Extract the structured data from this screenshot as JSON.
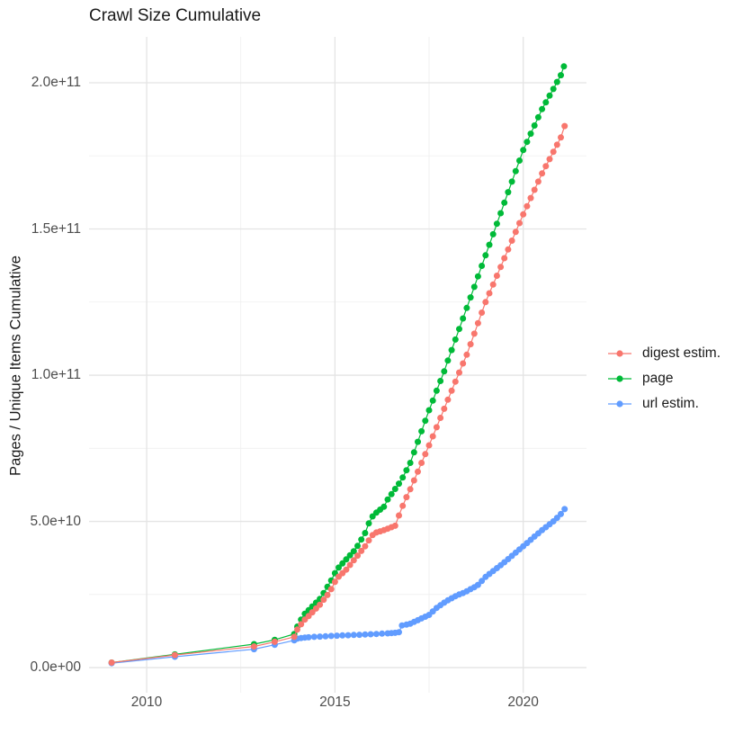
{
  "title": "Crawl Size Cumulative",
  "chart_data": {
    "type": "scatter",
    "title": "Crawl Size Cumulative",
    "xlabel": "",
    "ylabel": "Pages / Unique Items Cumulative",
    "value_unit": "items, stored as billions (1 = 1e9)",
    "xlim": [
      2008.47,
      2021.68
    ],
    "ylim_e9": [
      -8.6,
      215.7
    ],
    "grid": true,
    "legend_position": "right",
    "x_ticks": [
      {
        "label": "2010",
        "year": 2010
      },
      {
        "label": "2015",
        "year": 2015
      },
      {
        "label": "2020",
        "year": 2020
      }
    ],
    "x_minor": [
      2012.5,
      2017.5
    ],
    "y_ticks": [
      {
        "label": "0.0e+00",
        "value": 0
      },
      {
        "label": "5.0e+10",
        "value": 50
      },
      {
        "label": "1.0e+11",
        "value": 100
      },
      {
        "label": "1.5e+11",
        "value": 150
      },
      {
        "label": "2.0e+11",
        "value": 200
      }
    ],
    "y_minor": [
      25,
      75,
      125,
      175
    ],
    "draw_order": [
      1,
      2,
      0
    ],
    "series": [
      {
        "name": "digest estim.",
        "color": "#F8766D",
        "points": [
          [
            2009.07,
            1.7
          ],
          [
            2010.75,
            4.3
          ],
          [
            2012.85,
            7.2
          ],
          [
            2013.4,
            8.8
          ],
          [
            2013.92,
            10.5
          ],
          [
            2014.0,
            13
          ],
          [
            2014.1,
            14.8
          ],
          [
            2014.2,
            16.4
          ],
          [
            2014.3,
            17.6
          ],
          [
            2014.4,
            18.9
          ],
          [
            2014.5,
            20.2
          ],
          [
            2014.6,
            21.5
          ],
          [
            2014.7,
            23.2
          ],
          [
            2014.8,
            24.8
          ],
          [
            2014.9,
            26.8
          ],
          [
            2015.0,
            29.3
          ],
          [
            2015.1,
            31.1
          ],
          [
            2015.2,
            32.3
          ],
          [
            2015.3,
            33.5
          ],
          [
            2015.4,
            35.1
          ],
          [
            2015.5,
            36.7
          ],
          [
            2015.6,
            38.3
          ],
          [
            2015.7,
            39.9
          ],
          [
            2015.8,
            41.5
          ],
          [
            2015.9,
            43.5
          ],
          [
            2016.0,
            45.3
          ],
          [
            2016.1,
            46.2
          ],
          [
            2016.2,
            46.6
          ],
          [
            2016.3,
            47
          ],
          [
            2016.4,
            47.5
          ],
          [
            2016.5,
            48
          ],
          [
            2016.6,
            48.5
          ],
          [
            2016.7,
            52
          ],
          [
            2016.8,
            55.3
          ],
          [
            2016.9,
            58.3
          ],
          [
            2017.0,
            61
          ],
          [
            2017.1,
            64
          ],
          [
            2017.2,
            67
          ],
          [
            2017.3,
            70
          ],
          [
            2017.4,
            73
          ],
          [
            2017.5,
            76
          ],
          [
            2017.6,
            79.1
          ],
          [
            2017.7,
            82.2
          ],
          [
            2017.8,
            85.4
          ],
          [
            2017.9,
            88.5
          ],
          [
            2018.0,
            91.6
          ],
          [
            2018.1,
            94.7
          ],
          [
            2018.2,
            97.8
          ],
          [
            2018.3,
            100.9
          ],
          [
            2018.4,
            104
          ],
          [
            2018.5,
            107
          ],
          [
            2018.6,
            110.6
          ],
          [
            2018.7,
            114.2
          ],
          [
            2018.8,
            117.8
          ],
          [
            2018.9,
            121.4
          ],
          [
            2019.0,
            125
          ],
          [
            2019.1,
            128
          ],
          [
            2019.2,
            131
          ],
          [
            2019.3,
            134
          ],
          [
            2019.4,
            137
          ],
          [
            2019.5,
            140
          ],
          [
            2019.6,
            143
          ],
          [
            2019.7,
            146
          ],
          [
            2019.8,
            149
          ],
          [
            2019.9,
            152
          ],
          [
            2020.0,
            155
          ],
          [
            2020.1,
            157.8
          ],
          [
            2020.2,
            160.6
          ],
          [
            2020.3,
            163.4
          ],
          [
            2020.4,
            166.2
          ],
          [
            2020.5,
            169
          ],
          [
            2020.6,
            171.5
          ],
          [
            2020.7,
            173.9
          ],
          [
            2020.8,
            176.4
          ],
          [
            2020.9,
            178.8
          ],
          [
            2021.0,
            181.3
          ],
          [
            2021.1,
            185.2
          ]
        ]
      },
      {
        "name": "page",
        "color": "#00BA38",
        "points": [
          [
            2009.07,
            1.7
          ],
          [
            2010.75,
            4.5
          ],
          [
            2012.85,
            8
          ],
          [
            2013.4,
            9.5
          ],
          [
            2013.92,
            11.5
          ],
          [
            2014.0,
            14
          ],
          [
            2014.1,
            16.4
          ],
          [
            2014.2,
            18.4
          ],
          [
            2014.3,
            19.6
          ],
          [
            2014.4,
            20.9
          ],
          [
            2014.5,
            22.2
          ],
          [
            2014.6,
            23.5
          ],
          [
            2014.7,
            25.5
          ],
          [
            2014.8,
            27.6
          ],
          [
            2014.9,
            29.8
          ],
          [
            2015.0,
            32.3
          ],
          [
            2015.1,
            34.2
          ],
          [
            2015.2,
            35.6
          ],
          [
            2015.3,
            37
          ],
          [
            2015.4,
            38.4
          ],
          [
            2015.5,
            39.8
          ],
          [
            2015.6,
            41.6
          ],
          [
            2015.7,
            43.8
          ],
          [
            2015.8,
            46
          ],
          [
            2015.9,
            49.3
          ],
          [
            2016.0,
            51.7
          ],
          [
            2016.1,
            53
          ],
          [
            2016.2,
            54
          ],
          [
            2016.3,
            55
          ],
          [
            2016.4,
            57.5
          ],
          [
            2016.5,
            59.3
          ],
          [
            2016.6,
            61.1
          ],
          [
            2016.7,
            62.9
          ],
          [
            2016.8,
            65
          ],
          [
            2016.9,
            67.5
          ],
          [
            2017.0,
            70
          ],
          [
            2017.1,
            73.6
          ],
          [
            2017.2,
            77.2
          ],
          [
            2017.3,
            80.8
          ],
          [
            2017.4,
            84.4
          ],
          [
            2017.5,
            88
          ],
          [
            2017.6,
            91.3
          ],
          [
            2017.7,
            94.7
          ],
          [
            2017.8,
            98
          ],
          [
            2017.9,
            101.3
          ],
          [
            2018.0,
            105
          ],
          [
            2018.1,
            108.6
          ],
          [
            2018.2,
            112.2
          ],
          [
            2018.3,
            115.8
          ],
          [
            2018.4,
            119.4
          ],
          [
            2018.5,
            123
          ],
          [
            2018.6,
            126.6
          ],
          [
            2018.7,
            130.2
          ],
          [
            2018.8,
            133.8
          ],
          [
            2018.9,
            137.4
          ],
          [
            2019.0,
            141
          ],
          [
            2019.1,
            144.6
          ],
          [
            2019.2,
            148.2
          ],
          [
            2019.3,
            151.8
          ],
          [
            2019.4,
            155.4
          ],
          [
            2019.5,
            159
          ],
          [
            2019.6,
            162.6
          ],
          [
            2019.7,
            166.2
          ],
          [
            2019.8,
            169.8
          ],
          [
            2019.9,
            173.4
          ],
          [
            2020.0,
            177
          ],
          [
            2020.1,
            179.8
          ],
          [
            2020.2,
            182.6
          ],
          [
            2020.3,
            185.4
          ],
          [
            2020.4,
            188.2
          ],
          [
            2020.5,
            191
          ],
          [
            2020.6,
            193.3
          ],
          [
            2020.7,
            195.6
          ],
          [
            2020.8,
            197.9
          ],
          [
            2020.9,
            200.3
          ],
          [
            2021.0,
            202.6
          ],
          [
            2021.08,
            205.6
          ]
        ]
      },
      {
        "name": "url estim.",
        "color": "#619CFF",
        "points": [
          [
            2009.07,
            1.5
          ],
          [
            2010.75,
            3.7
          ],
          [
            2012.85,
            6.3
          ],
          [
            2013.4,
            7.8
          ],
          [
            2013.92,
            9.3
          ],
          [
            2014.0,
            9.9
          ],
          [
            2014.1,
            10.1
          ],
          [
            2014.2,
            10.25
          ],
          [
            2014.3,
            10.35
          ],
          [
            2014.45,
            10.5
          ],
          [
            2014.6,
            10.6
          ],
          [
            2014.75,
            10.7
          ],
          [
            2014.9,
            10.8
          ],
          [
            2015.05,
            10.9
          ],
          [
            2015.2,
            11.0
          ],
          [
            2015.35,
            11.05
          ],
          [
            2015.5,
            11.15
          ],
          [
            2015.65,
            11.2
          ],
          [
            2015.8,
            11.3
          ],
          [
            2015.95,
            11.4
          ],
          [
            2016.1,
            11.5
          ],
          [
            2016.25,
            11.6
          ],
          [
            2016.4,
            11.7
          ],
          [
            2016.5,
            11.8
          ],
          [
            2016.6,
            11.9
          ],
          [
            2016.7,
            12.1
          ],
          [
            2016.78,
            14.4
          ],
          [
            2016.9,
            14.7
          ],
          [
            2017.0,
            15
          ],
          [
            2017.1,
            15.6
          ],
          [
            2017.2,
            16.2
          ],
          [
            2017.3,
            16.8
          ],
          [
            2017.4,
            17.4
          ],
          [
            2017.5,
            18
          ],
          [
            2017.6,
            19.2
          ],
          [
            2017.7,
            20.4
          ],
          [
            2017.8,
            21.3
          ],
          [
            2017.9,
            22.2
          ],
          [
            2018.0,
            23
          ],
          [
            2018.1,
            23.7
          ],
          [
            2018.2,
            24.4
          ],
          [
            2018.3,
            25
          ],
          [
            2018.4,
            25.5
          ],
          [
            2018.5,
            26.1
          ],
          [
            2018.6,
            26.8
          ],
          [
            2018.7,
            27.5
          ],
          [
            2018.8,
            28.3
          ],
          [
            2018.9,
            29.6
          ],
          [
            2019.0,
            31
          ],
          [
            2019.1,
            32
          ],
          [
            2019.2,
            33
          ],
          [
            2019.3,
            34
          ],
          [
            2019.4,
            35
          ],
          [
            2019.5,
            36
          ],
          [
            2019.6,
            37.1
          ],
          [
            2019.7,
            38.2
          ],
          [
            2019.8,
            39.3
          ],
          [
            2019.9,
            40.4
          ],
          [
            2020.0,
            41.5
          ],
          [
            2020.1,
            42.6
          ],
          [
            2020.2,
            43.7
          ],
          [
            2020.3,
            44.8
          ],
          [
            2020.4,
            45.9
          ],
          [
            2020.5,
            47
          ],
          [
            2020.6,
            48
          ],
          [
            2020.7,
            49
          ],
          [
            2020.8,
            50
          ],
          [
            2020.9,
            51.2
          ],
          [
            2021.0,
            52.5
          ],
          [
            2021.1,
            54.2
          ]
        ]
      }
    ]
  },
  "style": {
    "grid_major_color": "#e4e4e4",
    "grid_minor_color": "#efefef",
    "tick_label_color": "#4d4d4d",
    "text_color": "#1a1a1a",
    "background": "#ffffff"
  }
}
